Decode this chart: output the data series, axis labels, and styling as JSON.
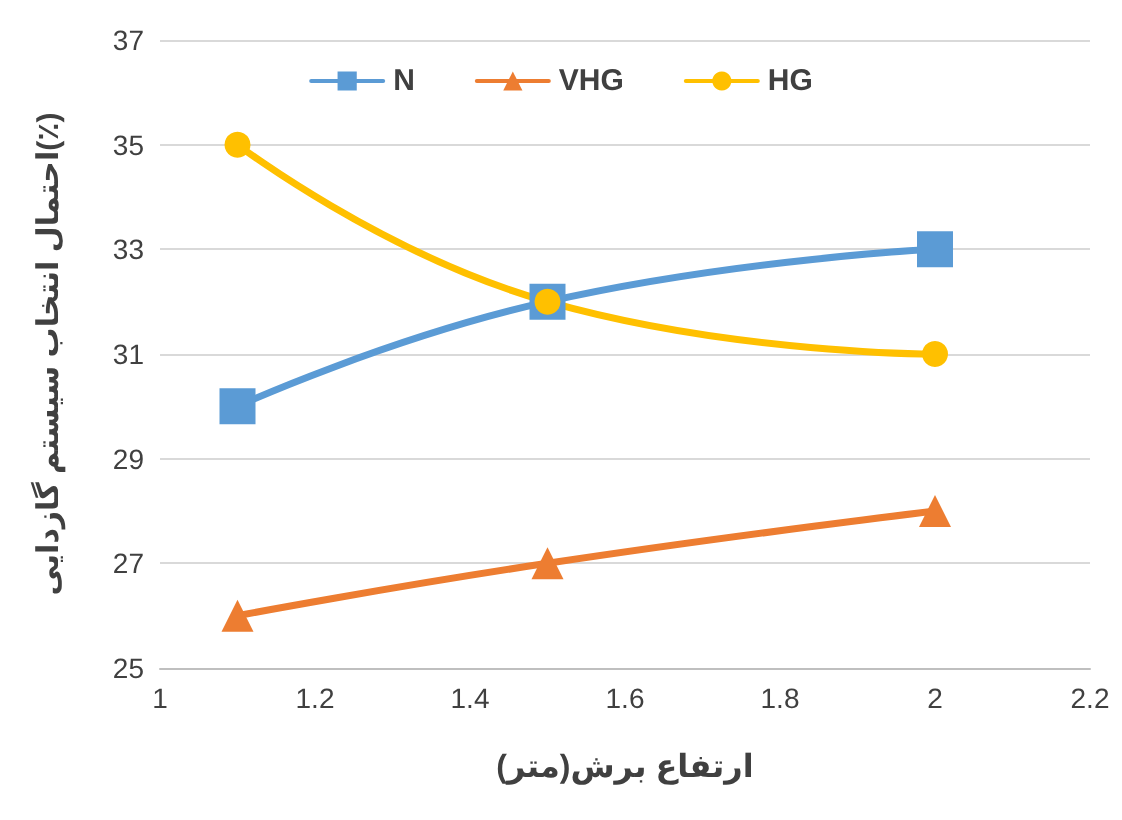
{
  "chart_data": {
    "type": "line",
    "xlabel": "ارتفاع برش(متر)",
    "ylabel": "احتمال انتخاب سیستم گازدایی(٪)",
    "x": [
      1.1,
      1.5,
      2
    ],
    "series": [
      {
        "name": "N",
        "color": "#5b9bd5",
        "marker": "square",
        "values": [
          30,
          32,
          33
        ]
      },
      {
        "name": "VHG",
        "color": "#ed7d31",
        "marker": "triangle",
        "values": [
          26,
          27,
          28
        ]
      },
      {
        "name": "HG",
        "color": "#ffc000",
        "marker": "circle",
        "values": [
          35,
          32,
          31
        ]
      }
    ],
    "xlim": [
      1,
      2.2
    ],
    "xticks": [
      1,
      1.2,
      1.4,
      1.6,
      1.8,
      2,
      2.2
    ],
    "ylim": [
      25,
      37
    ],
    "yticks": [
      25,
      27,
      29,
      31,
      33,
      35,
      37
    ],
    "grid": "y",
    "legend": "top",
    "line_style": "solid"
  }
}
